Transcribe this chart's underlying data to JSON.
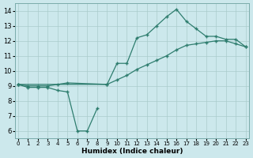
{
  "xlabel": "Humidex (Indice chaleur)",
  "bg_color": "#cce8ec",
  "line_color": "#2e7d6e",
  "grid_color": "#aacccc",
  "curve1_x": [
    0,
    1,
    2,
    3,
    4,
    5,
    6,
    7,
    8
  ],
  "curve1_y": [
    9.1,
    8.9,
    8.9,
    8.9,
    8.7,
    8.6,
    6.0,
    6.0,
    7.5
  ],
  "curve2_x": [
    0,
    9,
    10,
    11,
    12,
    13,
    14,
    15,
    16,
    17,
    18,
    19,
    20,
    21,
    22,
    23
  ],
  "curve2_y": [
    9.1,
    9.1,
    9.4,
    9.7,
    10.1,
    10.4,
    10.7,
    11.0,
    11.4,
    11.7,
    11.8,
    11.9,
    12.0,
    12.0,
    11.8,
    11.6
  ],
  "curve3_x": [
    0,
    1,
    2,
    3,
    4,
    5,
    9,
    10,
    11,
    12,
    13,
    14,
    15,
    16,
    17,
    18,
    19,
    20,
    21,
    22,
    23
  ],
  "curve3_y": [
    9.1,
    9.0,
    9.0,
    9.0,
    9.1,
    9.2,
    9.1,
    10.5,
    10.5,
    12.2,
    12.4,
    13.0,
    13.6,
    14.1,
    13.3,
    12.8,
    12.3,
    12.3,
    12.1,
    12.1,
    11.6
  ],
  "xlim": [
    -0.3,
    23.3
  ],
  "ylim": [
    5.5,
    14.5
  ],
  "yticks": [
    6,
    7,
    8,
    9,
    10,
    11,
    12,
    13,
    14
  ],
  "xticks": [
    0,
    1,
    2,
    3,
    4,
    5,
    6,
    7,
    8,
    9,
    10,
    11,
    12,
    13,
    14,
    15,
    16,
    17,
    18,
    19,
    20,
    21,
    22,
    23
  ]
}
